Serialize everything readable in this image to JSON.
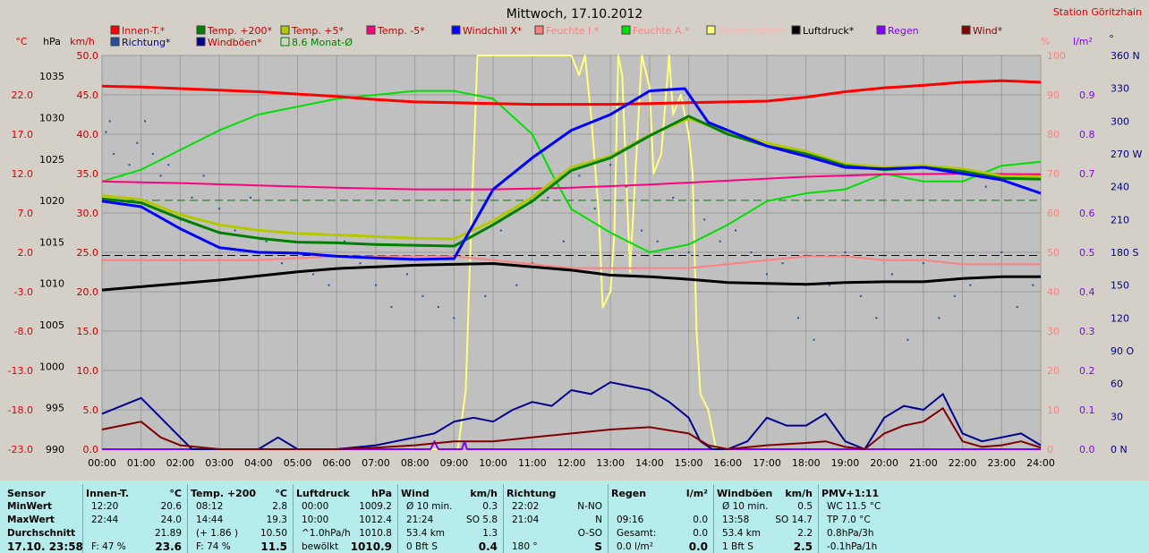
{
  "title": "Mittwoch, 17.10.2012",
  "station": "Station Göritzhain",
  "axis_units": {
    "celsius": "°C",
    "hpa": "hPa",
    "kmh": "km/h",
    "percent": "%",
    "rain": "l/m²",
    "deg": "°"
  },
  "legend": [
    {
      "label": "Innen-T.*",
      "color": "#ff0000",
      "text_color": "#e00000"
    },
    {
      "label": "Temp. +200*",
      "color": "#008000",
      "text_color": "#c00000"
    },
    {
      "label": "Temp. +5*",
      "color": "#b4c800",
      "text_color": "#c00000"
    },
    {
      "label": "Temp. -5*",
      "color": "#ff0080",
      "text_color": "#c00000"
    },
    {
      "label": "Windchill X*",
      "color": "#0000ff",
      "text_color": "#c00000"
    },
    {
      "label": "Feuchte I.*",
      "color": "#ff8080",
      "text_color": "#ff8080"
    },
    {
      "label": "Feuchte A.*",
      "color": "#00e000",
      "text_color": "#ff8080"
    },
    {
      "label": "Sonnenschein",
      "color": "#ffff80",
      "text_color": "#ffb0b0"
    },
    {
      "label": "Luftdruck*",
      "color": "#000000",
      "text_color": "#000000"
    },
    {
      "label": "Regen",
      "color": "#8000ff",
      "text_color": "#8000ff"
    },
    {
      "label": "Wind*",
      "color": "#800000",
      "text_color": "#800000"
    },
    {
      "label": "Richtung*",
      "color": "#2050a0",
      "text_color": "#000080"
    },
    {
      "label": "Windböen*",
      "color": "#000090",
      "text_color": "#c00000"
    },
    {
      "label": "8.6 Monat-Ø",
      "color": "#008000",
      "text_color": "#008000",
      "outline": true
    }
  ],
  "chart_data": {
    "type": "line",
    "title": "Mittwoch, 17.10.2012",
    "x_ticks": [
      "00:00",
      "01:00",
      "02:00",
      "03:00",
      "04:00",
      "05:00",
      "06:00",
      "07:00",
      "08:00",
      "09:00",
      "10:00",
      "11:00",
      "12:00",
      "13:00",
      "14:00",
      "15:00",
      "16:00",
      "17:00",
      "18:00",
      "19:00",
      "20:00",
      "21:00",
      "22:00",
      "23:00",
      "24:00"
    ],
    "xlim": [
      0,
      24
    ],
    "ylim_celsius": [
      -23,
      27
    ],
    "y_ticks_celsius": [
      "22.0",
      "17.0",
      "12.0",
      "7.0",
      "2.0",
      "-3.0",
      "-8.0",
      "-13.0",
      "-18.0",
      "-23.0"
    ],
    "ylim_hpa": [
      990,
      1037.5
    ],
    "y_ticks_hpa": [
      "1035",
      "1030",
      "1025",
      "1020",
      "1015",
      "1010",
      "1005",
      "1000",
      "995",
      "990"
    ],
    "ylim_kmh": [
      0,
      50
    ],
    "y_ticks_kmh": [
      "50.0",
      "45.0",
      "40.0",
      "35.0",
      "30.0",
      "25.0",
      "20.0",
      "15.0",
      "10.0",
      "5.0",
      "0.0"
    ],
    "ylim_percent": [
      0,
      100
    ],
    "y_ticks_percent": [
      "100",
      "90",
      "80",
      "70",
      "60",
      "50",
      "40",
      "30",
      "20",
      "10",
      "0"
    ],
    "ylim_rain": [
      0,
      1.0
    ],
    "y_ticks_rain": [
      "0.9",
      "0.8",
      "0.7",
      "0.6",
      "0.5",
      "0.4",
      "0.3",
      "0.2",
      "0.1",
      "0.0"
    ],
    "y_ticks_direction": [
      "360 N",
      "330",
      "300",
      "270 W",
      "240",
      "210",
      "180 S",
      "150",
      "120",
      "90 O",
      "60",
      "30",
      "0 N"
    ],
    "ref_lines": [
      {
        "axis": "celsius",
        "value": 8.6,
        "color": "#008000",
        "style": "dashed"
      },
      {
        "axis": "celsius",
        "value": 1.6,
        "color": "#000000",
        "style": "dashed"
      }
    ],
    "series": [
      {
        "name": "Innen-T.*",
        "axis": "celsius",
        "color": "#ff0000",
        "width": 3,
        "x": [
          0,
          1,
          2,
          3,
          4,
          5,
          6,
          7,
          8,
          9,
          10,
          11,
          12,
          13,
          14,
          15,
          16,
          17,
          18,
          19,
          20,
          21,
          22,
          23,
          24
        ],
        "y": [
          23.1,
          23.0,
          22.8,
          22.6,
          22.4,
          22.1,
          21.8,
          21.4,
          21.1,
          21.0,
          20.9,
          20.8,
          20.8,
          20.8,
          20.9,
          21.0,
          21.1,
          21.2,
          21.7,
          22.4,
          22.9,
          23.2,
          23.6,
          23.8,
          23.6
        ]
      },
      {
        "name": "Temp. +200*",
        "axis": "celsius",
        "color": "#008000",
        "width": 3,
        "x": [
          0,
          1,
          2,
          3,
          4,
          5,
          6,
          7,
          8,
          9,
          10,
          11,
          12,
          13,
          14,
          15,
          16,
          17,
          18,
          19,
          20,
          21,
          22,
          23,
          24
        ],
        "y": [
          8.8,
          8.3,
          6.3,
          4.5,
          3.8,
          3.3,
          3.2,
          3.0,
          2.9,
          2.8,
          5.5,
          8.5,
          12.4,
          14.0,
          16.8,
          19.3,
          17.0,
          15.5,
          14.5,
          13.0,
          12.5,
          12.8,
          12.3,
          11.4,
          11.3
        ]
      },
      {
        "name": "Temp. +5*",
        "axis": "celsius",
        "color": "#b4c800",
        "width": 3,
        "x": [
          0,
          1,
          2,
          3,
          4,
          5,
          6,
          7,
          8,
          9,
          10,
          11,
          12,
          13,
          14,
          15,
          16,
          17,
          18,
          19,
          20,
          21,
          22,
          23,
          24
        ],
        "y": [
          9.2,
          8.7,
          6.8,
          5.5,
          4.8,
          4.4,
          4.2,
          4.0,
          3.8,
          3.7,
          6.0,
          9.0,
          12.8,
          14.2,
          16.9,
          19.0,
          17.3,
          15.9,
          14.8,
          13.2,
          12.8,
          13.0,
          12.6,
          11.7,
          11.6
        ]
      },
      {
        "name": "Temp. -5*",
        "axis": "celsius",
        "color": "#ff0080",
        "width": 2,
        "x": [
          0,
          2,
          4,
          6,
          8,
          10,
          12,
          14,
          16,
          18,
          20,
          22,
          24
        ],
        "y": [
          11.0,
          10.8,
          10.5,
          10.2,
          10.0,
          10.0,
          10.2,
          10.6,
          11.1,
          11.6,
          11.9,
          12.0,
          11.9
        ]
      },
      {
        "name": "Windchill X*",
        "axis": "celsius",
        "color": "#0000ff",
        "width": 3,
        "x": [
          0,
          1,
          2,
          3,
          4,
          5,
          6,
          7,
          8,
          9,
          10,
          11,
          12,
          13,
          14,
          14.9,
          15.5,
          16,
          17,
          18,
          19,
          20,
          21,
          22,
          23,
          24
        ],
        "y": [
          8.5,
          7.8,
          5.0,
          2.6,
          2.0,
          1.9,
          1.5,
          1.3,
          1.1,
          1.2,
          10.0,
          14.0,
          17.5,
          19.5,
          22.5,
          22.8,
          18.5,
          17.5,
          15.5,
          14.2,
          12.8,
          12.6,
          12.8,
          12.0,
          11.2,
          9.5
        ]
      },
      {
        "name": "Feuchte I.*",
        "axis": "percent",
        "color": "#ff8080",
        "width": 2,
        "x": [
          0,
          2,
          4,
          6,
          7,
          8,
          9,
          10,
          11,
          12,
          13,
          14,
          15,
          16,
          17,
          18,
          19,
          20,
          21,
          22,
          23,
          24
        ],
        "y": [
          48,
          48,
          48,
          49,
          49,
          49,
          49,
          48,
          47,
          46,
          46,
          46,
          46,
          47,
          48,
          49,
          49,
          48,
          48,
          47,
          47,
          47
        ]
      },
      {
        "name": "Feuchte A.*",
        "axis": "percent",
        "color": "#00e000",
        "width": 2,
        "x": [
          0,
          1,
          2,
          3,
          4,
          5,
          6,
          7,
          8,
          9,
          10,
          11,
          11.5,
          12,
          13,
          14,
          15,
          16,
          17,
          18,
          19,
          20,
          21,
          22,
          23,
          24
        ],
        "y": [
          68,
          71,
          76,
          81,
          85,
          87,
          89,
          90,
          91,
          91,
          89,
          80,
          70,
          61,
          55,
          50,
          52,
          57,
          63,
          65,
          66,
          70,
          68,
          68,
          72,
          73
        ]
      },
      {
        "name": "Sonnenschein",
        "axis": "percent",
        "color": "#ffff80",
        "width": 2,
        "x": [
          0,
          9.1,
          9.3,
          9.45,
          9.6,
          10.0,
          11.0,
          12.0,
          12.2,
          12.35,
          12.5,
          12.7,
          12.8,
          13.0,
          13.1,
          13.2,
          13.3,
          13.5,
          13.8,
          14.0,
          14.1,
          14.3,
          14.5,
          14.6,
          14.8,
          15.0,
          15.1,
          15.2,
          15.3,
          15.5,
          15.7,
          16,
          24
        ],
        "y": [
          0,
          0,
          15,
          60,
          100,
          100,
          100,
          100,
          95,
          100,
          85,
          60,
          36,
          40,
          55,
          100,
          95,
          45,
          100,
          92,
          70,
          75,
          100,
          85,
          90,
          80,
          70,
          30,
          14,
          10,
          0,
          0,
          0
        ]
      },
      {
        "name": "Luftdruck*",
        "axis": "hpa",
        "color": "#000000",
        "width": 3,
        "x": [
          0,
          1,
          2,
          3,
          4,
          5,
          6,
          7,
          8,
          9,
          10,
          11,
          12,
          13,
          14,
          15,
          16,
          17,
          18,
          19,
          20,
          21,
          22,
          23,
          24
        ],
        "y": [
          1009.2,
          1009.6,
          1010.0,
          1010.4,
          1010.9,
          1011.4,
          1011.8,
          1012.0,
          1012.2,
          1012.3,
          1012.4,
          1012.0,
          1011.6,
          1011.0,
          1010.8,
          1010.5,
          1010.1,
          1010.0,
          1009.9,
          1010.1,
          1010.2,
          1010.2,
          1010.6,
          1010.8,
          1010.8
        ]
      },
      {
        "name": "Windböen*",
        "axis": "kmh",
        "color": "#000090",
        "width": 2,
        "x": [
          0,
          0.5,
          1,
          1.5,
          2,
          2.3,
          3,
          4,
          4.5,
          5,
          6,
          7,
          8,
          8.5,
          9,
          9.5,
          10,
          10.5,
          11,
          11.5,
          12,
          12.5,
          13,
          13.5,
          14,
          14.5,
          15,
          15.3,
          15.6,
          16,
          16.5,
          17,
          17.5,
          18,
          18.5,
          19,
          19.5,
          20,
          20.5,
          21,
          21.5,
          22,
          22.5,
          23,
          23.5,
          24
        ],
        "y": [
          4.5,
          5.5,
          6.5,
          4.0,
          1.5,
          0.0,
          0.0,
          0.0,
          1.5,
          0.0,
          0.0,
          0.5,
          1.5,
          2.0,
          3.5,
          4.0,
          3.5,
          5.0,
          6.0,
          5.5,
          7.5,
          7.0,
          8.5,
          8.0,
          7.5,
          6.0,
          4.0,
          1.0,
          0.0,
          0.0,
          1.0,
          4.0,
          3.0,
          3.0,
          4.5,
          1.0,
          0.0,
          4.0,
          5.5,
          5.0,
          7.0,
          2.0,
          1.0,
          1.5,
          2.0,
          0.5
        ]
      },
      {
        "name": "Wind*",
        "axis": "kmh",
        "color": "#800000",
        "width": 2,
        "x": [
          0,
          0.5,
          1,
          1.5,
          2,
          3,
          4,
          5,
          6,
          7,
          8,
          9,
          10,
          11,
          12,
          13,
          14,
          15,
          15.5,
          16,
          17,
          18,
          18.5,
          19,
          19.5,
          20,
          20.5,
          21,
          21.5,
          22,
          22.5,
          23,
          23.5,
          24
        ],
        "y": [
          2.5,
          3.0,
          3.5,
          1.5,
          0.5,
          0.0,
          0.0,
          0.0,
          0.0,
          0.2,
          0.5,
          1.0,
          1.0,
          1.5,
          2.0,
          2.5,
          2.8,
          2.0,
          0.5,
          0.0,
          0.5,
          0.8,
          1.0,
          0.3,
          0.0,
          2.0,
          3.0,
          3.5,
          5.2,
          1.0,
          0.3,
          0.5,
          1.0,
          0.2
        ]
      },
      {
        "name": "Regen",
        "axis": "rain",
        "color": "#8000ff",
        "width": 2,
        "x": [
          0,
          8.4,
          8.5,
          8.6,
          9.2,
          9.27,
          9.33,
          9.4,
          24
        ],
        "y": [
          0,
          0,
          0.02,
          0,
          0,
          0.02,
          0,
          0,
          0
        ]
      },
      {
        "name": "Richtung*",
        "axis": "direction",
        "color": "#2050a0",
        "type": "scatter",
        "x": [
          0.1,
          0.2,
          0.3,
          0.5,
          0.7,
          0.9,
          1.1,
          1.3,
          1.5,
          1.7,
          2.0,
          2.3,
          2.6,
          3.0,
          3.4,
          3.8,
          4.2,
          4.6,
          5.0,
          5.4,
          5.8,
          6.2,
          6.6,
          7.0,
          7.4,
          7.8,
          8.2,
          8.6,
          9.0,
          9.4,
          9.8,
          10.2,
          10.6,
          11.0,
          11.4,
          11.8,
          12.2,
          12.6,
          13.0,
          13.4,
          13.8,
          14.2,
          14.6,
          15.0,
          15.4,
          15.8,
          16.2,
          16.6,
          17.0,
          17.4,
          17.8,
          18.2,
          18.6,
          19.0,
          19.4,
          19.8,
          20.2,
          20.6,
          21.0,
          21.4,
          21.8,
          22.2,
          22.6,
          23.0,
          23.4,
          23.8
        ],
        "y": [
          290,
          300,
          270,
          250,
          260,
          280,
          300,
          270,
          250,
          260,
          210,
          230,
          250,
          220,
          200,
          230,
          190,
          170,
          180,
          160,
          150,
          190,
          170,
          150,
          130,
          160,
          140,
          130,
          120,
          170,
          140,
          200,
          150,
          170,
          230,
          190,
          250,
          220,
          260,
          240,
          200,
          190,
          230,
          180,
          210,
          190,
          200,
          180,
          160,
          170,
          120,
          100,
          150,
          180,
          140,
          120,
          160,
          100,
          170,
          120,
          140,
          150,
          240,
          180,
          130,
          150
        ]
      }
    ]
  },
  "stats": {
    "rows": [
      "Sensor",
      "MinWert",
      "MaxWert",
      "Durchschnitt",
      "17.10. 23:58"
    ],
    "cols": [
      {
        "title": "Innen-T.",
        "unit": "°C",
        "cells": [
          [
            "12:20",
            "20.6"
          ],
          [
            "22:44",
            "24.0"
          ],
          [
            "",
            "21.89"
          ],
          [
            "F: 47 %",
            "23.6"
          ]
        ]
      },
      {
        "title": "Temp. +200",
        "unit": "°C",
        "cells": [
          [
            "08:12",
            "2.8"
          ],
          [
            "14:44",
            "19.3"
          ],
          [
            "(+ 1.86 )",
            "10.50"
          ],
          [
            "F: 74 %",
            "11.5"
          ]
        ]
      },
      {
        "title": "Luftdruck",
        "unit": "hPa",
        "cells": [
          [
            "00:00",
            "1009.2"
          ],
          [
            "10:00",
            "1012.4"
          ],
          [
            "^1.0hPa/h",
            "1010.8"
          ],
          [
            "bewölkt",
            "1010.9"
          ]
        ]
      },
      {
        "title": "Wind",
        "unit": "km/h",
        "cells": [
          [
            "Ø 10 min.",
            "0.3"
          ],
          [
            "21:24",
            "SO 5.8"
          ],
          [
            "53.4 km",
            "1.3"
          ],
          [
            "0 Bft S",
            "0.4"
          ]
        ]
      },
      {
        "title": "Richtung",
        "unit": "",
        "cells": [
          [
            "22:02",
            "N-NO"
          ],
          [
            "21:04",
            "N"
          ],
          [
            "",
            "O-SO"
          ],
          [
            "180 °",
            "S"
          ]
        ]
      },
      {
        "title": "Regen",
        "unit": "l/m²",
        "cells": [
          [
            "",
            ""
          ],
          [
            "09:16",
            "0.0"
          ],
          [
            "Gesamt:",
            "0.0"
          ],
          [
            "0.0 l/m²",
            "0.0"
          ]
        ]
      },
      {
        "title": "Windböen",
        "unit": "km/h",
        "cells": [
          [
            "Ø 10 min.",
            "0.5"
          ],
          [
            "13:58",
            "SO 14.7"
          ],
          [
            "53.4 km",
            "2.2"
          ],
          [
            "1 Bft S",
            "2.5"
          ]
        ]
      },
      {
        "title": "PMV+1:11",
        "unit": "",
        "cells": [
          [
            "WC 11.5 °C",
            ""
          ],
          [
            "TP 7.0 °C",
            ""
          ],
          [
            "0.8hPa/3h",
            ""
          ],
          [
            "-0.1hPa/1h",
            ""
          ]
        ]
      }
    ]
  }
}
